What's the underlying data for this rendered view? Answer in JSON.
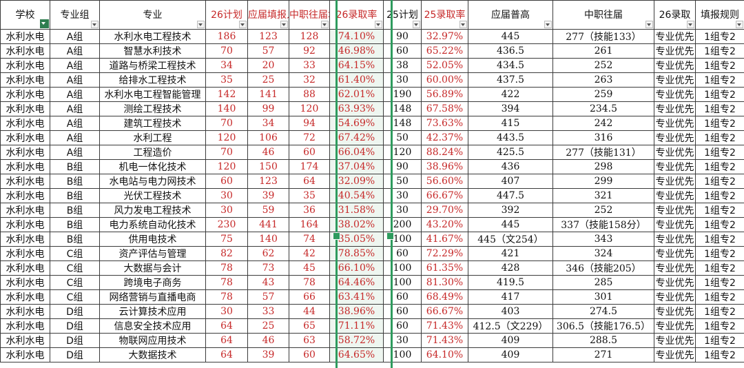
{
  "headers": [
    {
      "label": "学校",
      "red": false,
      "filtered": true
    },
    {
      "label": "专业组",
      "red": false,
      "filtered": false
    },
    {
      "label": "专业",
      "red": false,
      "filtered": false
    },
    {
      "label": "26计划",
      "red": true,
      "filtered": false
    },
    {
      "label": "应届填报人数",
      "red": true,
      "filtered": false
    },
    {
      "label": "中职往届填报人…",
      "red": true,
      "filtered": false
    },
    {
      "label": "26录取率",
      "red": true,
      "filtered": false
    },
    {
      "label": "25计划",
      "red": false,
      "filtered": false
    },
    {
      "label": "25录取率",
      "red": true,
      "filtered": false
    },
    {
      "label": "应届普高",
      "red": false,
      "filtered": false
    },
    {
      "label": "中职往届",
      "red": false,
      "filtered": false
    },
    {
      "label": "26录取",
      "red": false,
      "filtered": false
    },
    {
      "label": "填报规则",
      "red": false,
      "filtered": false
    }
  ],
  "rows": [
    [
      "水利水电",
      "A组",
      "水利水电工程技术",
      "186",
      "123",
      "128",
      "74.10%",
      "90",
      "32.97%",
      "445",
      "277（技能133）",
      "专业优先",
      "1组专2"
    ],
    [
      "水利水电",
      "A组",
      "智慧水利技术",
      "70",
      "57",
      "92",
      "46.98%",
      "60",
      "65.22%",
      "436.5",
      "261",
      "专业优先",
      "1组专2"
    ],
    [
      "水利水电",
      "A组",
      "道路与桥梁工程技术",
      "34",
      "20",
      "33",
      "64.15%",
      "38",
      "52.05%",
      "434.5",
      "252",
      "专业优先",
      "1组专2"
    ],
    [
      "水利水电",
      "A组",
      "给排水工程技术",
      "35",
      "25",
      "32",
      "61.40%",
      "30",
      "60.00%",
      "437.5",
      "263",
      "专业优先",
      "1组专2"
    ],
    [
      "水利水电",
      "A组",
      "水利水电工程智能管理",
      "142",
      "141",
      "88",
      "62.01%",
      "190",
      "56.89%",
      "422",
      "259",
      "专业优先",
      "1组专2"
    ],
    [
      "水利水电",
      "A组",
      "测绘工程技术",
      "140",
      "99",
      "120",
      "63.93%",
      "148",
      "67.58%",
      "394",
      "234.5",
      "专业优先",
      "1组专2"
    ],
    [
      "水利水电",
      "A组",
      "建筑工程技术",
      "70",
      "34",
      "94",
      "54.69%",
      "148",
      "73.63%",
      "415",
      "242",
      "专业优先",
      "1组专2"
    ],
    [
      "水利水电",
      "A组",
      "水利工程",
      "120",
      "106",
      "72",
      "67.42%",
      "50",
      "42.37%",
      "443.5",
      "316",
      "专业优先",
      "1组专2"
    ],
    [
      "水利水电",
      "A组",
      "工程造价",
      "70",
      "46",
      "60",
      "66.04%",
      "120",
      "88.24%",
      "425.5",
      "277（技能131）",
      "专业优先",
      "1组专2"
    ],
    [
      "水利水电",
      "B组",
      "机电一体化技术",
      "120",
      "150",
      "174",
      "37.04%",
      "90",
      "38.96%",
      "436",
      "298",
      "专业优先",
      "1组专2"
    ],
    [
      "水利水电",
      "B组",
      "水电站与电力网技术",
      "60",
      "123",
      "64",
      "32.09%",
      "50",
      "56.60%",
      "407",
      "299",
      "专业优先",
      "1组专2"
    ],
    [
      "水利水电",
      "B组",
      "光伏工程技术",
      "30",
      "39",
      "35",
      "40.54%",
      "30",
      "66.67%",
      "447.5",
      "321",
      "专业优先",
      "1组专2"
    ],
    [
      "水利水电",
      "B组",
      "风力发电工程技术",
      "30",
      "59",
      "36",
      "31.58%",
      "30",
      "29.70%",
      "392",
      "252",
      "专业优先",
      "1组专2"
    ],
    [
      "水利水电",
      "B组",
      "电力系统自动化技术",
      "230",
      "441",
      "164",
      "38.02%",
      "200",
      "43.20%",
      "445",
      "337（技能158分）",
      "专业优先",
      "1组专2"
    ],
    [
      "水利水电",
      "B组",
      "供用电技术",
      "75",
      "140",
      "74",
      "35.05%",
      "100",
      "41.67%",
      "445（文254）",
      "343",
      "专业优先",
      "1组专2"
    ],
    [
      "水利水电",
      "C组",
      "资产评估与管理",
      "82",
      "62",
      "42",
      "78.85%",
      "60",
      "72.29%",
      "421",
      "324",
      "专业优先",
      "1组专2"
    ],
    [
      "水利水电",
      "C组",
      "大数据与会计",
      "78",
      "73",
      "45",
      "66.10%",
      "100",
      "61.35%",
      "428",
      "346（技能205）",
      "专业优先",
      "1组专2"
    ],
    [
      "水利水电",
      "C组",
      "跨境电子商务",
      "78",
      "43",
      "78",
      "64.46%",
      "100",
      "81.30%",
      "419.5",
      "285",
      "专业优先",
      "1组专2"
    ],
    [
      "水利水电",
      "C组",
      "网络营销与直播电商",
      "78",
      "57",
      "66",
      "63.41%",
      "60",
      "68.49%",
      "417",
      "301",
      "专业优先",
      "1组专2"
    ],
    [
      "水利水电",
      "D组",
      "云计算技术应用",
      "30",
      "33",
      "44",
      "38.96%",
      "60",
      "66.67%",
      "403",
      "274.5",
      "专业优先",
      "1组专2"
    ],
    [
      "水利水电",
      "D组",
      "信息安全技术应用",
      "64",
      "25",
      "65",
      "71.11%",
      "60",
      "71.43%",
      "412.5（文229）",
      "306.5（技能176.5）",
      "专业优先",
      "1组专2"
    ],
    [
      "水利水电",
      "D组",
      "物联网应用技术",
      "64",
      "46",
      "63",
      "58.72%",
      "30",
      "71.43%",
      "409",
      "288.5",
      "专业优先",
      "1组专2"
    ],
    [
      "水利水电",
      "D组",
      "大数据技术",
      "64",
      "39",
      "60",
      "64.65%",
      "100",
      "64.10%",
      "409",
      "271",
      "专业优先",
      "1组专2"
    ]
  ]
}
